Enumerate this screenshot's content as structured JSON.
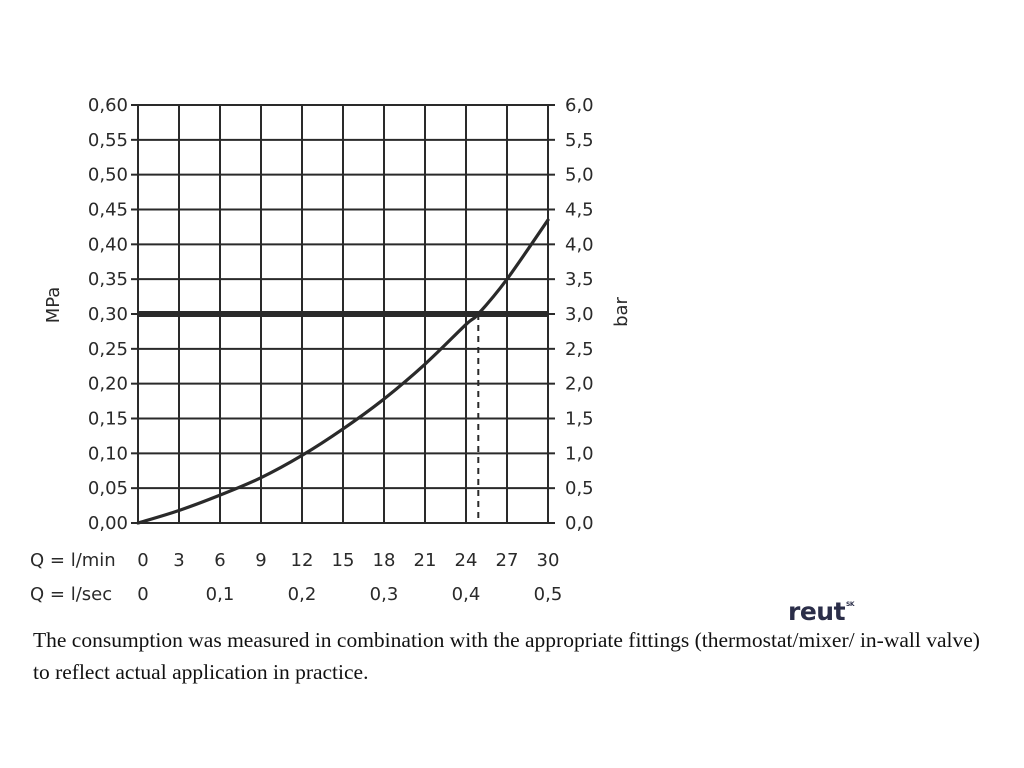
{
  "chart_data": {
    "type": "line",
    "y_left": {
      "label": "MPa",
      "ticks": [
        "0,60",
        "0,55",
        "0,50",
        "0,45",
        "0,40",
        "0,35",
        "0,30",
        "0,25",
        "0,20",
        "0,15",
        "0,10",
        "0,05",
        "0,00"
      ],
      "range": [
        0,
        0.6
      ]
    },
    "y_right": {
      "label": "bar",
      "ticks": [
        "6,0",
        "5,5",
        "5,0",
        "4,5",
        "4,0",
        "3,5",
        "3,0",
        "2,5",
        "2,0",
        "1,5",
        "1,0",
        "0,5",
        "0,0"
      ],
      "range": [
        0,
        6
      ]
    },
    "x_min": {
      "label": "Q = l/min",
      "ticks": [
        "0",
        "3",
        "6",
        "9",
        "12",
        "15",
        "18",
        "21",
        "24",
        "27",
        "30"
      ],
      "range": [
        0,
        30
      ]
    },
    "x_sec": {
      "label": "Q = l/sec",
      "ticks": [
        "0",
        "0,1",
        "0,2",
        "0,3",
        "0,4",
        "0,5"
      ],
      "values": [
        0,
        0.1,
        0.2,
        0.3,
        0.4,
        0.5
      ]
    },
    "curve": {
      "x": [
        0,
        3,
        6,
        9,
        12,
        15,
        18,
        21,
        24,
        24.9,
        27,
        30
      ],
      "y": [
        0,
        0.018,
        0.04,
        0.065,
        0.097,
        0.135,
        0.178,
        0.228,
        0.285,
        0.3,
        0.35,
        0.435
      ]
    },
    "reference_line": {
      "y": 0.3
    },
    "marker": {
      "x": 24.9,
      "y": 0.3
    },
    "grid": true
  },
  "caption": "The consumption was measured in combination with the appropriate fittings (thermostat/mixer/ in-wall valve) to reflect actual application in practice.",
  "logo": {
    "text": "reut",
    "suffix": "SK",
    "color": "#2b2e49"
  }
}
